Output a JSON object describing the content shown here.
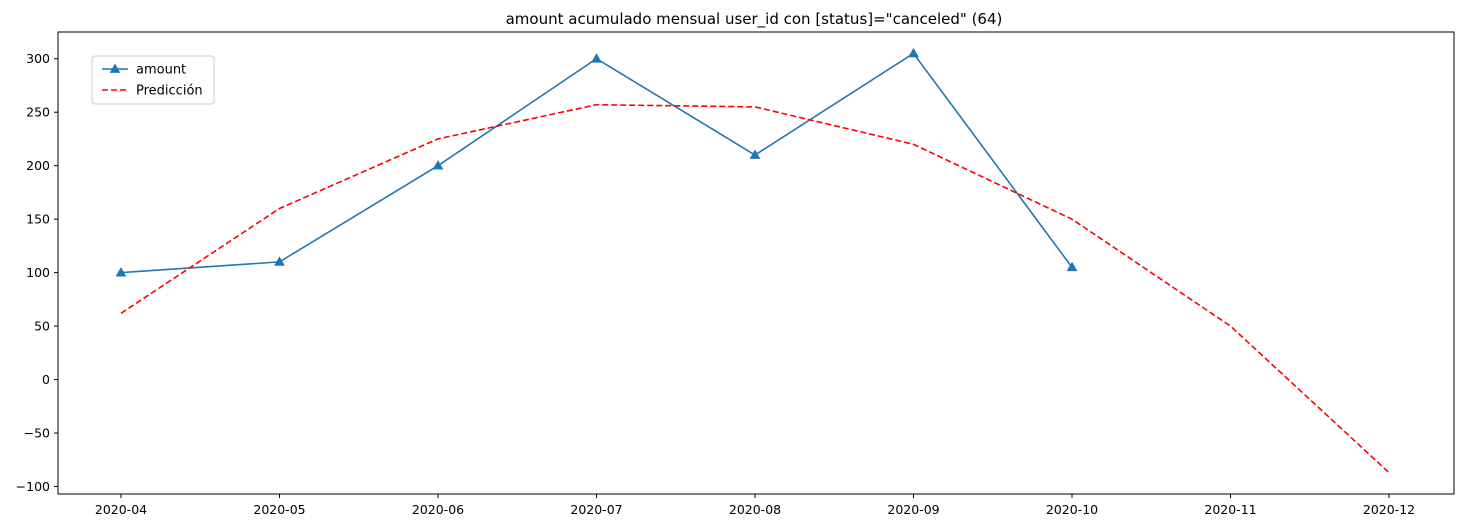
{
  "chart_data": {
    "type": "line",
    "title": "amount acumulado mensual user_id con [status]=\"canceled\" (64)",
    "xlabel": "",
    "ylabel": "",
    "x": [
      "2020-04",
      "2020-05",
      "2020-06",
      "2020-07",
      "2020-08",
      "2020-09",
      "2020-10",
      "2020-11",
      "2020-12"
    ],
    "ylim": [
      -107,
      325
    ],
    "yticks": [
      -100,
      -50,
      0,
      50,
      100,
      150,
      200,
      250,
      300
    ],
    "ytick_labels": [
      "−100",
      "−50",
      "0",
      "50",
      "100",
      "150",
      "200",
      "250",
      "300"
    ],
    "grid": false,
    "legend_position": "upper-left",
    "series": [
      {
        "name": "amount",
        "color": "#1f77b4",
        "style": "solid",
        "marker": "triangle",
        "values": [
          100,
          110,
          200,
          300,
          210,
          305,
          105,
          null,
          null
        ]
      },
      {
        "name": "Predicción",
        "color": "#ff0000",
        "style": "dashed",
        "marker": "none",
        "values": [
          62,
          160,
          225,
          257,
          255,
          220,
          150,
          50,
          -87
        ]
      }
    ]
  }
}
